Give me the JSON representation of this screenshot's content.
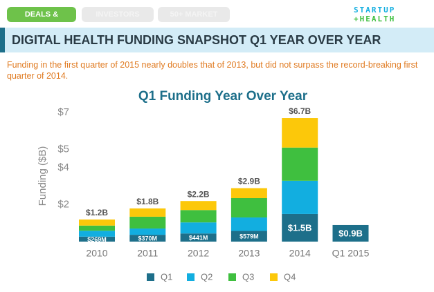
{
  "tabs": [
    "DEALS & FUNDING",
    "INVESTORS",
    "50+ MARKET"
  ],
  "logo": {
    "line1": "STARTUP",
    "line2": "+HEALTH"
  },
  "header": {
    "title": "DIGITAL HEALTH FUNDING SNAPSHOT Q1 YEAR OVER YEAR"
  },
  "subtitle": "Funding in the first quarter of 2015 nearly doubles that of 2013, but did not surpass the record-breaking first quarter of 2014.",
  "chart_data": {
    "type": "stacked_bar",
    "title": "Q1 Funding Year Over Year",
    "y_label": "Funding ($B)",
    "categories": [
      "2010",
      "2011",
      "2012",
      "2013",
      "2014",
      "Q1 2015"
    ],
    "series": [
      {
        "name": "Q1",
        "color": "#1d6f8a",
        "values": [
          0.269,
          0.37,
          0.441,
          0.579,
          1.5,
          0.9
        ],
        "value_labels": [
          "$269M",
          "$370M",
          "$441M",
          "$579M",
          "$1.5B",
          "$0.9B"
        ]
      },
      {
        "name": "Q2",
        "color": "#12aee0",
        "values": [
          0.32,
          0.34,
          0.6,
          0.73,
          1.8,
          null
        ]
      },
      {
        "name": "Q3",
        "color": "#3fbf3f",
        "values": [
          0.28,
          0.64,
          0.67,
          1.05,
          1.8,
          null
        ]
      },
      {
        "name": "Q4",
        "color": "#fcc80a",
        "values": [
          0.33,
          0.45,
          0.49,
          0.54,
          1.6,
          null
        ]
      }
    ],
    "totals": {
      "values": [
        1.2,
        1.8,
        2.2,
        2.9,
        6.7,
        null
      ],
      "value_labels": [
        "$1.2B",
        "$1.8B",
        "$2.2B",
        "$2.9B",
        "$6.7B",
        null
      ]
    },
    "ylim": [
      0,
      7.3
    ],
    "yticks": [
      {
        "value": 2,
        "label": "$2"
      },
      {
        "value": 4,
        "label": "$4"
      },
      {
        "value": 5,
        "label": "$5"
      },
      {
        "value": 7,
        "label": "$7"
      }
    ],
    "grid": false,
    "legend": "bottom"
  }
}
